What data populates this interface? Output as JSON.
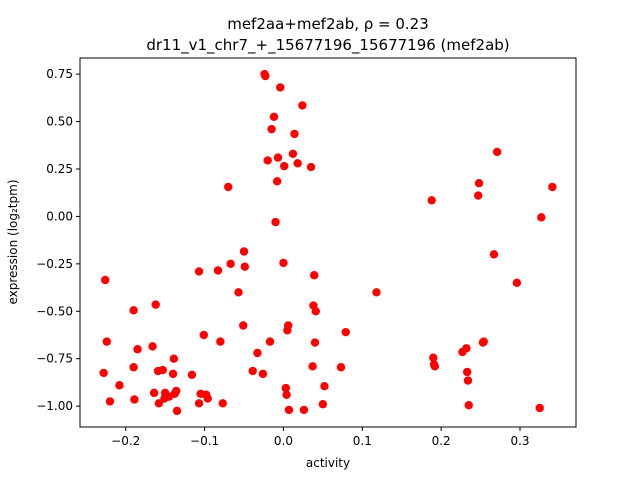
{
  "chart_data": {
    "type": "scatter",
    "title_line1": "mef2aa+mef2ab, ρ = 0.23",
    "title_line2": "dr11_v1_chr7_+_15677196_15677196 (mef2ab)",
    "xlabel": "activity",
    "ylabel": "expression (log₂tpm)",
    "xlim": [
      -0.258,
      0.371
    ],
    "ylim": [
      -1.11,
      0.835
    ],
    "grid": false,
    "point_color": "#ff0000",
    "xticks": [
      {
        "value": -0.2,
        "label": "−0.2"
      },
      {
        "value": -0.1,
        "label": "−0.1"
      },
      {
        "value": 0.0,
        "label": "0.0"
      },
      {
        "value": 0.1,
        "label": "0.1"
      },
      {
        "value": 0.2,
        "label": "0.2"
      },
      {
        "value": 0.3,
        "label": "0.3"
      }
    ],
    "yticks": [
      {
        "value": 0.75,
        "label": "0.75"
      },
      {
        "value": 0.5,
        "label": "0.50"
      },
      {
        "value": 0.25,
        "label": "0.25"
      },
      {
        "value": 0.0,
        "label": "0.00"
      },
      {
        "value": -0.25,
        "label": "−0.25"
      },
      {
        "value": -0.5,
        "label": "−0.50"
      },
      {
        "value": -0.75,
        "label": "−0.75"
      },
      {
        "value": -1.0,
        "label": "−1.00"
      }
    ],
    "points": [
      [
        -0.228,
        -0.825
      ],
      [
        -0.226,
        -0.335
      ],
      [
        -0.224,
        -0.66
      ],
      [
        -0.22,
        -0.975
      ],
      [
        -0.208,
        -0.89
      ],
      [
        -0.19,
        -0.495
      ],
      [
        -0.19,
        -0.795
      ],
      [
        -0.189,
        -0.965
      ],
      [
        -0.185,
        -0.7
      ],
      [
        -0.166,
        -0.685
      ],
      [
        -0.164,
        -0.93
      ],
      [
        -0.162,
        -0.465
      ],
      [
        -0.159,
        -0.815
      ],
      [
        -0.158,
        -0.985
      ],
      [
        -0.153,
        -0.81
      ],
      [
        -0.151,
        -0.96
      ],
      [
        -0.15,
        -0.93
      ],
      [
        -0.145,
        -0.95
      ],
      [
        -0.14,
        -0.83
      ],
      [
        -0.139,
        -0.75
      ],
      [
        -0.138,
        -0.935
      ],
      [
        -0.136,
        -0.92
      ],
      [
        -0.135,
        -1.025
      ],
      [
        -0.116,
        -0.835
      ],
      [
        -0.107,
        -0.29
      ],
      [
        -0.107,
        -0.985
      ],
      [
        -0.105,
        -0.935
      ],
      [
        -0.101,
        -0.625
      ],
      [
        -0.098,
        -0.94
      ],
      [
        -0.096,
        -0.96
      ],
      [
        -0.083,
        -0.285
      ],
      [
        -0.08,
        -0.66
      ],
      [
        -0.077,
        -0.985
      ],
      [
        -0.07,
        0.155
      ],
      [
        -0.067,
        -0.25
      ],
      [
        -0.057,
        -0.4
      ],
      [
        -0.051,
        -0.575
      ],
      [
        -0.05,
        -0.185
      ],
      [
        -0.049,
        -0.265
      ],
      [
        -0.039,
        -0.815
      ],
      [
        -0.033,
        -0.72
      ],
      [
        -0.026,
        -0.83
      ],
      [
        -0.024,
        0.75
      ],
      [
        -0.023,
        0.74
      ],
      [
        -0.02,
        0.295
      ],
      [
        -0.017,
        -0.66
      ],
      [
        -0.015,
        0.46
      ],
      [
        -0.012,
        0.525
      ],
      [
        -0.01,
        -0.03
      ],
      [
        -0.008,
        0.185
      ],
      [
        -0.007,
        0.31
      ],
      [
        -0.004,
        0.68
      ],
      [
        0.0,
        -0.245
      ],
      [
        0.001,
        0.265
      ],
      [
        0.003,
        -0.905
      ],
      [
        0.004,
        -0.94
      ],
      [
        0.005,
        -0.6
      ],
      [
        0.006,
        -0.575
      ],
      [
        0.007,
        -1.02
      ],
      [
        0.012,
        0.33
      ],
      [
        0.014,
        0.435
      ],
      [
        0.018,
        0.28
      ],
      [
        0.024,
        0.585
      ],
      [
        0.026,
        -1.02
      ],
      [
        0.035,
        0.26
      ],
      [
        0.037,
        -0.79
      ],
      [
        0.038,
        -0.47
      ],
      [
        0.039,
        -0.31
      ],
      [
        0.04,
        -0.665
      ],
      [
        0.041,
        -0.5
      ],
      [
        0.05,
        -0.99
      ],
      [
        0.052,
        -0.895
      ],
      [
        0.073,
        -0.795
      ],
      [
        0.079,
        -0.61
      ],
      [
        0.118,
        -0.4
      ],
      [
        0.188,
        0.085
      ],
      [
        0.19,
        -0.745
      ],
      [
        0.191,
        -0.78
      ],
      [
        0.192,
        -0.79
      ],
      [
        0.227,
        -0.715
      ],
      [
        0.232,
        -0.695
      ],
      [
        0.233,
        -0.82
      ],
      [
        0.234,
        -0.865
      ],
      [
        0.235,
        -0.995
      ],
      [
        0.247,
        0.11
      ],
      [
        0.248,
        0.175
      ],
      [
        0.253,
        -0.665
      ],
      [
        0.254,
        -0.66
      ],
      [
        0.267,
        -0.2
      ],
      [
        0.271,
        0.34
      ],
      [
        0.296,
        -0.35
      ],
      [
        0.325,
        -1.01
      ],
      [
        0.327,
        -0.005
      ],
      [
        0.341,
        0.155
      ]
    ]
  }
}
